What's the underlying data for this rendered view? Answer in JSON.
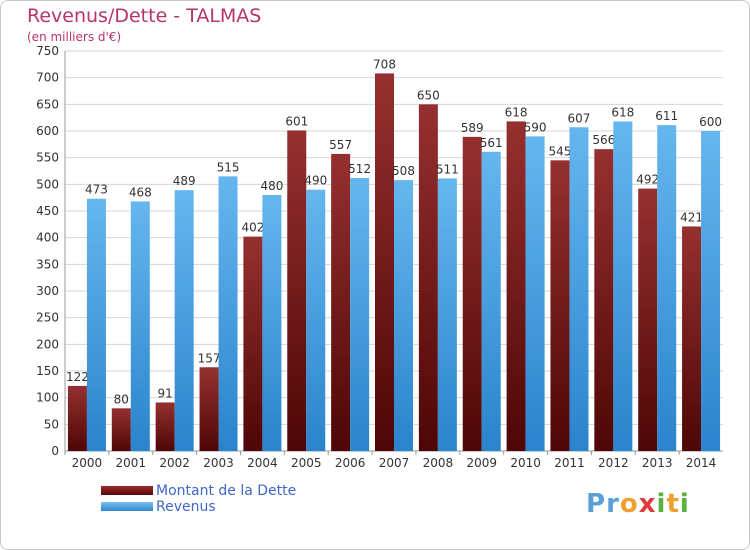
{
  "header": {
    "title": "Revenus/Dette - TALMAS",
    "subtitle": "(en milliers d'€)"
  },
  "legend": {
    "items": [
      {
        "label": "Montant de la Dette",
        "color": "#7a1616"
      },
      {
        "label": "Revenus",
        "color": "#4aa3e6"
      }
    ]
  },
  "logo": {
    "text": "Proxiti",
    "letters": [
      {
        "ch": "P",
        "color": "#5aa0d8"
      },
      {
        "ch": "r",
        "color": "#5aa0d8"
      },
      {
        "ch": "o",
        "color": "#f0a030"
      },
      {
        "ch": "x",
        "color": "#e03a3a"
      },
      {
        "ch": "i",
        "color": "#5ab040"
      },
      {
        "ch": "t",
        "color": "#f0a030"
      },
      {
        "ch": "i",
        "color": "#5ab040"
      }
    ]
  },
  "chart_data": {
    "type": "bar",
    "title": "Revenus/Dette - TALMAS",
    "subtitle": "(en milliers d'€)",
    "categories": [
      "2000",
      "2001",
      "2002",
      "2003",
      "2004",
      "2005",
      "2006",
      "2007",
      "2008",
      "2009",
      "2010",
      "2011",
      "2012",
      "2013",
      "2014"
    ],
    "series": [
      {
        "name": "Montant de la Dette",
        "color": "#7a1616",
        "values": [
          122,
          80,
          91,
          157,
          402,
          601,
          557,
          708,
          650,
          589,
          618,
          545,
          566,
          492,
          421
        ]
      },
      {
        "name": "Revenus",
        "color": "#4aa3e6",
        "values": [
          473,
          468,
          489,
          515,
          480,
          490,
          512,
          508,
          511,
          561,
          590,
          607,
          618,
          611,
          600
        ]
      }
    ],
    "ylim": [
      0,
      750
    ],
    "yticks": [
      0,
      50,
      100,
      150,
      200,
      250,
      300,
      350,
      400,
      450,
      500,
      550,
      600,
      650,
      700,
      750
    ],
    "grid": true,
    "legend_position": "bottom-left"
  }
}
